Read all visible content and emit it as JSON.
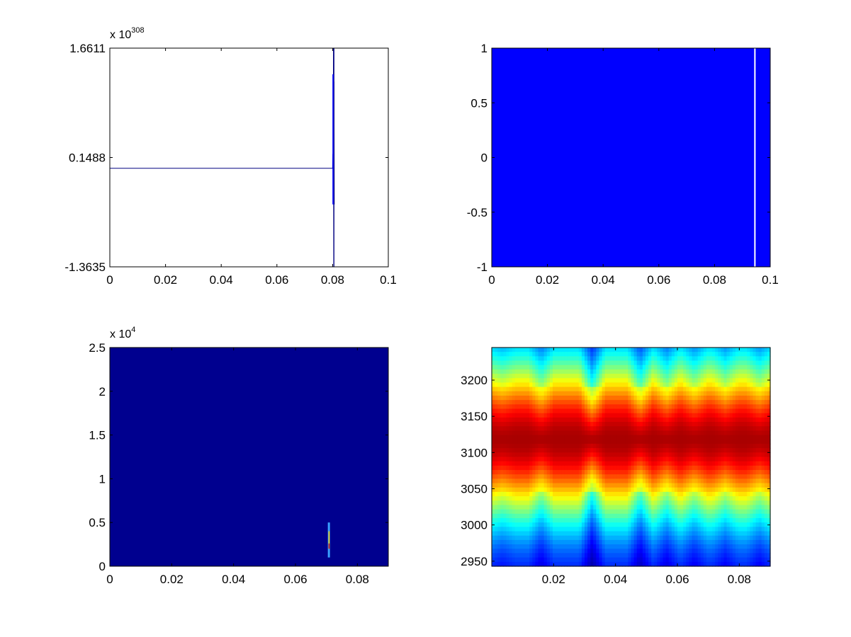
{
  "figure": {
    "background": "#ffffff",
    "axis_color": "#000000",
    "line_color": "#000080",
    "spike_color": "#0000ff"
  },
  "chart_data": [
    {
      "type": "line",
      "title": "",
      "xlabel": "",
      "ylabel": "",
      "xlim": [
        0,
        0.1
      ],
      "ylim": [
        -1.3635,
        1.6611
      ],
      "xticks": [
        0,
        0.02,
        0.04,
        0.06,
        0.08,
        0.1
      ],
      "xtick_labels": [
        "0",
        "0.02",
        "0.04",
        "0.06",
        "0.08",
        "0.1"
      ],
      "yticks": [
        -1.3635,
        0.1488,
        1.6611
      ],
      "ytick_labels": [
        "-1.3635",
        "0.1488",
        "1.6611"
      ],
      "y_exponent": {
        "base": "x 10",
        "power": "308"
      },
      "series": [
        {
          "x": [
            0,
            0.08,
            0.0801,
            0.0802,
            0.0803,
            0.0804,
            0.0805,
            0.0806
          ],
          "y": [
            0.0,
            0.0,
            0.2,
            -0.3,
            1.6611,
            -1.3635,
            1.2,
            -0.5
          ]
        }
      ],
      "spike": {
        "x": [
          0.0802,
          0.0805
        ],
        "ymin": -0.5,
        "ymax": 1.3
      }
    },
    {
      "type": "heatmap",
      "title": "",
      "xlabel": "",
      "ylabel": "",
      "xlim": [
        0,
        0.1
      ],
      "ylim": [
        -1,
        1
      ],
      "xticks": [
        0,
        0.02,
        0.04,
        0.06,
        0.08,
        0.1
      ],
      "xtick_labels": [
        "0",
        "0.02",
        "0.04",
        "0.06",
        "0.08",
        "0.1"
      ],
      "yticks": [
        -1,
        -0.5,
        0,
        0.5,
        1
      ],
      "ytick_labels": [
        "-1",
        "-0.5",
        "0",
        "0.5",
        "1"
      ],
      "fill_color": "#0000ff",
      "white_stripe_x": 0.0945
    },
    {
      "type": "heatmap",
      "title": "",
      "xlabel": "",
      "ylabel": "",
      "xlim": [
        0,
        0.09
      ],
      "ylim": [
        0,
        25000
      ],
      "xticks": [
        0,
        0.02,
        0.04,
        0.06,
        0.08
      ],
      "xtick_labels": [
        "0",
        "0.02",
        "0.04",
        "0.06",
        "0.08"
      ],
      "yticks": [
        0,
        5000,
        10000,
        15000,
        20000,
        25000
      ],
      "ytick_labels": [
        "0",
        "0.5",
        "1",
        "1.5",
        "2",
        "2.5"
      ],
      "y_exponent": {
        "base": "x 10",
        "power": "4"
      },
      "fill_color": "#00008f",
      "hotspot": {
        "x": 0.0708,
        "y_range": [
          1000,
          5000
        ]
      }
    },
    {
      "type": "heatmap",
      "title": "",
      "xlabel": "",
      "ylabel": "",
      "xlim": [
        0,
        0.09
      ],
      "ylim": [
        2943,
        3245
      ],
      "xticks": [
        0.02,
        0.04,
        0.06,
        0.08
      ],
      "xtick_labels": [
        "0.02",
        "0.04",
        "0.06",
        "0.08"
      ],
      "yticks": [
        2950,
        3000,
        3050,
        3100,
        3150,
        3200
      ],
      "ytick_labels": [
        "2950",
        "3000",
        "3050",
        "3100",
        "3150",
        "3200"
      ],
      "colormap": "jet",
      "ridge_center_y": 3118,
      "dips": [
        {
          "x": 0.0035,
          "depth": 0.22
        },
        {
          "x": 0.016,
          "depth": 0.55
        },
        {
          "x": 0.0325,
          "depth": 1.0
        },
        {
          "x": 0.048,
          "depth": 0.8
        },
        {
          "x": 0.0565,
          "depth": 0.55
        },
        {
          "x": 0.0655,
          "depth": 0.45
        },
        {
          "x": 0.0755,
          "depth": 0.4
        },
        {
          "x": 0.0865,
          "depth": 0.4
        }
      ]
    }
  ]
}
